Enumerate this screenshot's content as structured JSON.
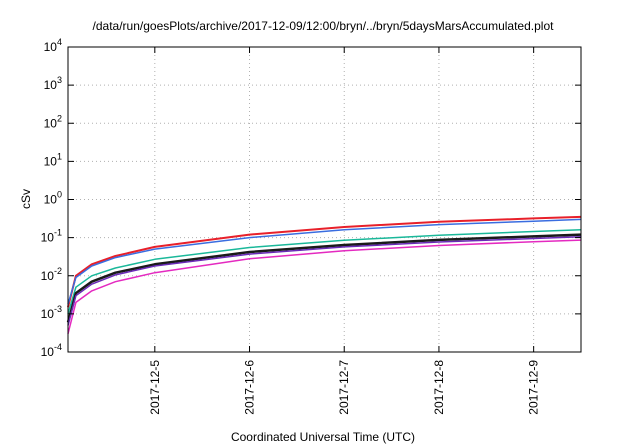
{
  "chart_data": {
    "type": "line",
    "title": "/data/run/goesPlots/archive/2017-12-09/12:00/bryn/../bryn/5daysMarsAccumulated.plot",
    "xlabel": "Coordinated Universal Time (UTC)",
    "ylabel": "cSv",
    "yscale": "log",
    "ylim": [
      0.0001,
      10000
    ],
    "xlim": [
      "2017-12-04 02:00",
      "2017-12-09 12:00"
    ],
    "grid": true,
    "y_ticks": [
      {
        "base": "10",
        "exp": "-4",
        "value": 0.0001
      },
      {
        "base": "10",
        "exp": "-3",
        "value": 0.001
      },
      {
        "base": "10",
        "exp": "-2",
        "value": 0.01
      },
      {
        "base": "10",
        "exp": "-1",
        "value": 0.1
      },
      {
        "base": "10",
        "exp": "0",
        "value": 1
      },
      {
        "base": "10",
        "exp": "1",
        "value": 10
      },
      {
        "base": "10",
        "exp": "2",
        "value": 100
      },
      {
        "base": "10",
        "exp": "3",
        "value": 1000
      },
      {
        "base": "10",
        "exp": "4",
        "value": 10000
      }
    ],
    "x_ticks": [
      {
        "label": "2017-12-5",
        "value": "2017-12-05 00:00"
      },
      {
        "label": "2017-12-6",
        "value": "2017-12-06 00:00"
      },
      {
        "label": "2017-12-7",
        "value": "2017-12-07 00:00"
      },
      {
        "label": "2017-12-8",
        "value": "2017-12-08 00:00"
      },
      {
        "label": "2017-12-9",
        "value": "2017-12-09 00:00"
      }
    ],
    "series": [
      {
        "color": "#e8202a",
        "width": 2,
        "points": [
          [
            "2017-12-04 02:00",
            0.0015
          ],
          [
            "2017-12-04 04:00",
            0.01
          ],
          [
            "2017-12-04 08:00",
            0.02
          ],
          [
            "2017-12-04 14:00",
            0.033
          ],
          [
            "2017-12-05 00:00",
            0.057
          ],
          [
            "2017-12-06 00:00",
            0.12
          ],
          [
            "2017-12-07 00:00",
            0.19
          ],
          [
            "2017-12-08 00:00",
            0.26
          ],
          [
            "2017-12-09 00:00",
            0.32
          ],
          [
            "2017-12-09 12:00",
            0.35
          ]
        ]
      },
      {
        "color": "#3a6de0",
        "width": 1.5,
        "points": [
          [
            "2017-12-04 02:00",
            0.0018
          ],
          [
            "2017-12-04 04:00",
            0.009
          ],
          [
            "2017-12-04 08:00",
            0.018
          ],
          [
            "2017-12-04 14:00",
            0.03
          ],
          [
            "2017-12-05 00:00",
            0.05
          ],
          [
            "2017-12-06 00:00",
            0.1
          ],
          [
            "2017-12-07 00:00",
            0.16
          ],
          [
            "2017-12-08 00:00",
            0.22
          ],
          [
            "2017-12-09 00:00",
            0.27
          ],
          [
            "2017-12-09 12:00",
            0.3
          ]
        ]
      },
      {
        "color": "#1ab89a",
        "width": 1.5,
        "points": [
          [
            "2017-12-04 02:00",
            0.001
          ],
          [
            "2017-12-04 04:00",
            0.005
          ],
          [
            "2017-12-04 08:00",
            0.01
          ],
          [
            "2017-12-04 14:00",
            0.016
          ],
          [
            "2017-12-05 00:00",
            0.027
          ],
          [
            "2017-12-06 00:00",
            0.055
          ],
          [
            "2017-12-07 00:00",
            0.085
          ],
          [
            "2017-12-08 00:00",
            0.115
          ],
          [
            "2017-12-09 00:00",
            0.145
          ],
          [
            "2017-12-09 12:00",
            0.16
          ]
        ]
      },
      {
        "color": "#1a1a1a",
        "width": 2.5,
        "points": [
          [
            "2017-12-04 02:00",
            0.0006
          ],
          [
            "2017-12-04 04:00",
            0.0035
          ],
          [
            "2017-12-04 08:00",
            0.007
          ],
          [
            "2017-12-04 14:00",
            0.012
          ],
          [
            "2017-12-05 00:00",
            0.02
          ],
          [
            "2017-12-06 00:00",
            0.042
          ],
          [
            "2017-12-07 00:00",
            0.064
          ],
          [
            "2017-12-08 00:00",
            0.087
          ],
          [
            "2017-12-09 00:00",
            0.108
          ],
          [
            "2017-12-09 12:00",
            0.12
          ]
        ]
      },
      {
        "color": "#6a2ab8",
        "width": 1.5,
        "points": [
          [
            "2017-12-04 02:00",
            0.0005
          ],
          [
            "2017-12-04 04:00",
            0.003
          ],
          [
            "2017-12-04 08:00",
            0.006
          ],
          [
            "2017-12-04 14:00",
            0.0105
          ],
          [
            "2017-12-05 00:00",
            0.018
          ],
          [
            "2017-12-06 00:00",
            0.037
          ],
          [
            "2017-12-07 00:00",
            0.057
          ],
          [
            "2017-12-08 00:00",
            0.077
          ],
          [
            "2017-12-09 00:00",
            0.095
          ],
          [
            "2017-12-09 12:00",
            0.105
          ]
        ]
      },
      {
        "color": "#e42ac0",
        "width": 1.5,
        "points": [
          [
            "2017-12-04 02:00",
            0.0003
          ],
          [
            "2017-12-04 04:00",
            0.002
          ],
          [
            "2017-12-04 08:00",
            0.004
          ],
          [
            "2017-12-04 14:00",
            0.007
          ],
          [
            "2017-12-05 00:00",
            0.012
          ],
          [
            "2017-12-06 00:00",
            0.028
          ],
          [
            "2017-12-07 00:00",
            0.045
          ],
          [
            "2017-12-08 00:00",
            0.062
          ],
          [
            "2017-12-09 00:00",
            0.078
          ],
          [
            "2017-12-09 12:00",
            0.086
          ]
        ]
      }
    ]
  }
}
